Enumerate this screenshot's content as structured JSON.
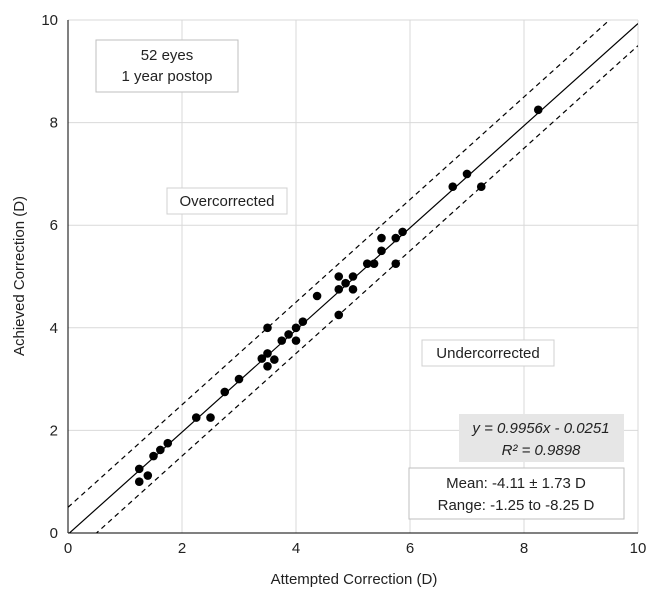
{
  "chart_data": {
    "type": "scatter",
    "xlabel": "Attempted Correction (D)",
    "ylabel": "Achieved Correction (D)",
    "xlim": [
      0,
      10
    ],
    "ylim": [
      0,
      10
    ],
    "xticks": [
      "0",
      "2",
      "4",
      "6",
      "8",
      "10"
    ],
    "yticks": [
      "0",
      "2",
      "4",
      "6",
      "8",
      "10"
    ],
    "grid": true,
    "points": [
      [
        1.25,
        1.0
      ],
      [
        1.25,
        1.25
      ],
      [
        1.4,
        1.12
      ],
      [
        1.5,
        1.5
      ],
      [
        1.62,
        1.62
      ],
      [
        1.75,
        1.75
      ],
      [
        2.25,
        2.25
      ],
      [
        2.5,
        2.25
      ],
      [
        2.75,
        2.75
      ],
      [
        3.0,
        3.0
      ],
      [
        3.4,
        3.4
      ],
      [
        3.5,
        3.25
      ],
      [
        3.5,
        3.5
      ],
      [
        3.5,
        4.0
      ],
      [
        3.62,
        3.38
      ],
      [
        3.75,
        3.75
      ],
      [
        3.87,
        3.87
      ],
      [
        4.0,
        3.75
      ],
      [
        4.0,
        4.0
      ],
      [
        4.12,
        4.12
      ],
      [
        4.37,
        4.62
      ],
      [
        4.75,
        4.25
      ],
      [
        4.75,
        4.75
      ],
      [
        4.75,
        5.0
      ],
      [
        4.87,
        4.87
      ],
      [
        5.0,
        4.75
      ],
      [
        5.0,
        5.0
      ],
      [
        5.25,
        5.25
      ],
      [
        5.37,
        5.25
      ],
      [
        5.5,
        5.5
      ],
      [
        5.5,
        5.75
      ],
      [
        5.75,
        5.25
      ],
      [
        5.75,
        5.75
      ],
      [
        5.87,
        5.87
      ],
      [
        6.75,
        6.75
      ],
      [
        7.0,
        7.0
      ],
      [
        7.25,
        6.75
      ],
      [
        8.25,
        8.25
      ]
    ],
    "regression": {
      "slope": 0.9956,
      "intercept": -0.0251
    },
    "bound_offset": 0.5,
    "annotations": {
      "eyes_line1": "52 eyes",
      "eyes_line2": "1 year postop",
      "overcorrected": "Overcorrected",
      "undercorrected": "Undercorrected",
      "equation": "y = 0.9956x - 0.0251",
      "r2": "R² = 0.9898",
      "mean": "Mean: -4.11 ± 1.73 D",
      "range": "Range: -1.25 to -8.25 D"
    },
    "colors": {
      "points": "#000000",
      "grid": "#d9d9d9",
      "box_border": "#bfbfbf",
      "reg_box_fill": "#e6e6e6"
    }
  }
}
